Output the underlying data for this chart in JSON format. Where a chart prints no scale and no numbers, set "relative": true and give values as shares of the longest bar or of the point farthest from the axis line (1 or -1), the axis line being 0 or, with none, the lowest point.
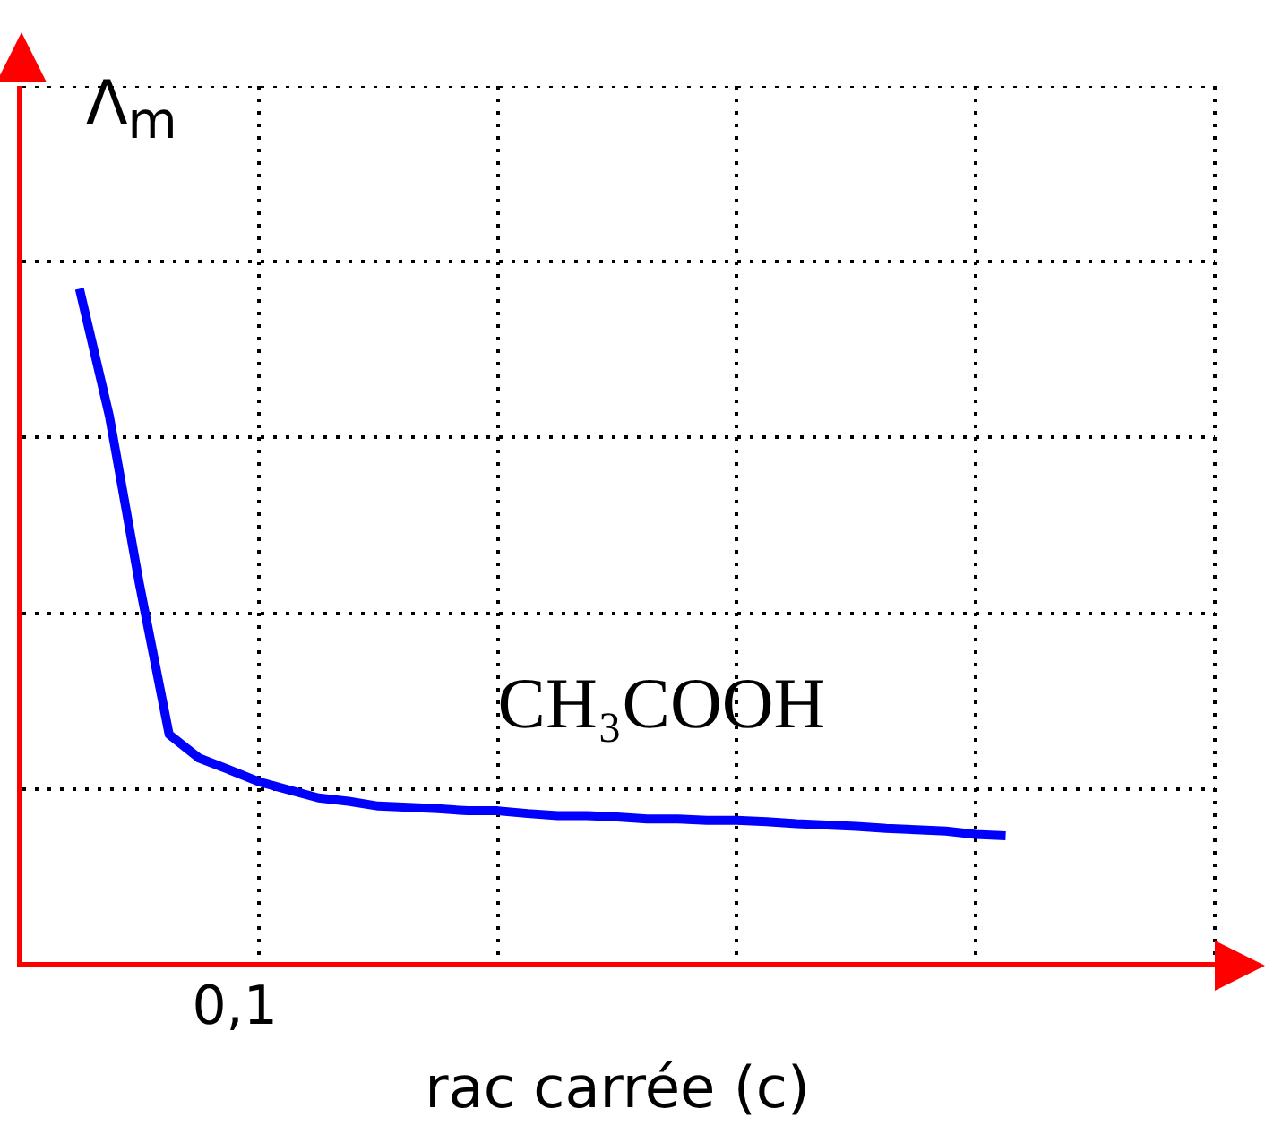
{
  "chart_data": {
    "type": "line",
    "relative": true,
    "xlabel": "rac carrée (c)",
    "ylabel": "Λ$_{m}$",
    "categories": [
      null,
      null,
      null,
      null,
      null,
      null,
      null,
      null,
      null,
      null,
      null,
      null,
      null,
      null,
      null,
      null,
      null,
      null,
      null,
      null,
      null,
      null,
      null,
      null,
      null,
      null,
      null,
      null,
      null,
      null,
      null,
      null,
      null,
      null,
      null,
      null,
      null,
      null,
      null,
      null,
      null
    ],
    "series": [
      {
        "color": "#0000ff",
        "values": [
          null,
          null,
          1,
          0.812,
          0.565,
          0.341,
          0.306,
          0.289,
          0.271,
          0.259,
          0.247,
          0.242,
          0.235,
          0.233,
          0.231,
          0.228,
          0.228,
          0.224,
          0.221,
          0.221,
          0.219,
          0.216,
          0.216,
          0.214,
          0.214,
          0.212,
          0.209,
          0.207,
          0.205,
          0.202,
          0.2,
          0.198,
          0.193,
          0.191,
          null,
          null,
          null,
          null,
          null,
          null,
          null
        ]
      }
    ],
    "annotations": [
      "CH₃COOH",
      "0,1"
    ],
    "grid": true,
    "legend": false,
    "marker": "none",
    "line_style": "solid"
  }
}
